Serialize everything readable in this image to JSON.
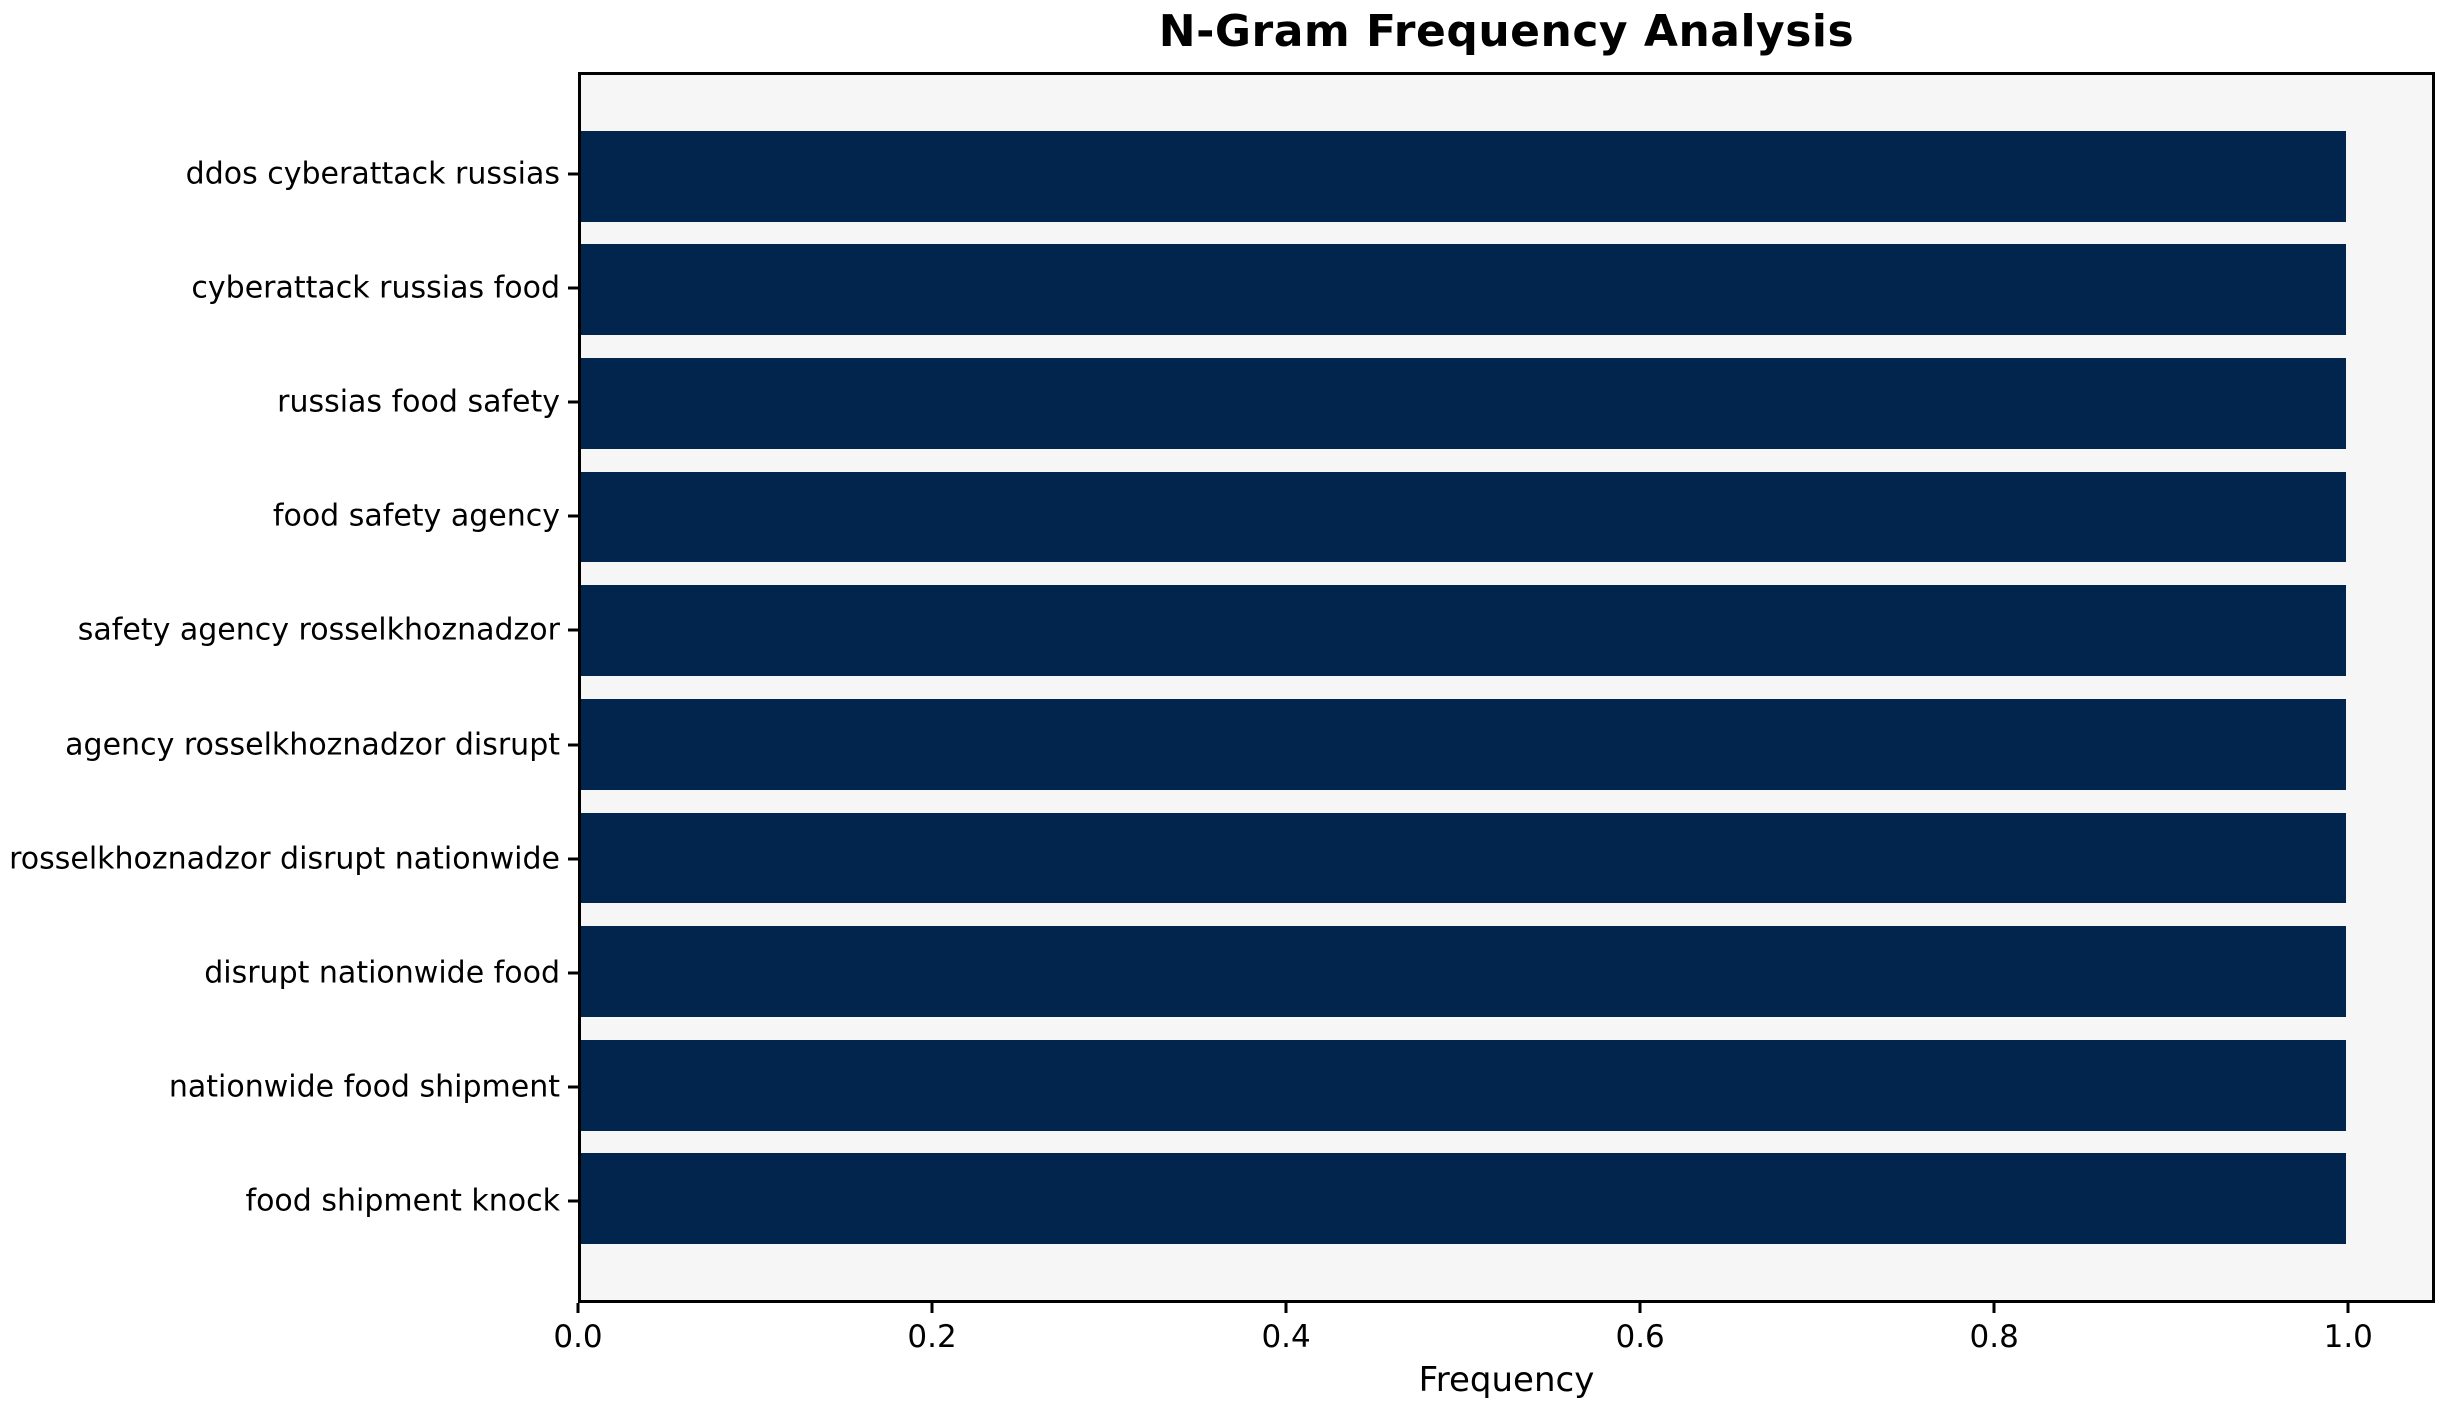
{
  "chart_data": {
    "type": "bar",
    "orientation": "horizontal",
    "title": "N-Gram Frequency Analysis",
    "xlabel": "Frequency",
    "ylabel": "",
    "categories": [
      "ddos cyberattack russias",
      "cyberattack russias food",
      "russias food safety",
      "food safety agency",
      "safety agency rosselkhoznadzor",
      "agency rosselkhoznadzor disrupt",
      "rosselkhoznadzor disrupt nationwide",
      "disrupt nationwide food",
      "nationwide food shipment",
      "food shipment knock"
    ],
    "values": [
      1.0,
      1.0,
      1.0,
      1.0,
      1.0,
      1.0,
      1.0,
      1.0,
      1.0,
      1.0
    ],
    "x_ticks": [
      {
        "value": 0.0,
        "label": "0.0"
      },
      {
        "value": 0.2,
        "label": "0.2"
      },
      {
        "value": 0.4,
        "label": "0.4"
      },
      {
        "value": 0.6,
        "label": "0.6"
      },
      {
        "value": 0.8,
        "label": "0.8"
      },
      {
        "value": 1.0,
        "label": "1.0"
      }
    ],
    "xlim": [
      0,
      1.049
    ],
    "grid": false,
    "legend": null,
    "colors": {
      "bar": "#02254e",
      "plot_bg": "#f6f6f6",
      "figure_bg": "#ffffff",
      "spine": "#000000",
      "text": "#000000"
    },
    "layout": {
      "bar_height_units": 0.8,
      "y_span_units": 10.78,
      "first_center_offset_units": 0.89,
      "legend_position": "none"
    }
  }
}
